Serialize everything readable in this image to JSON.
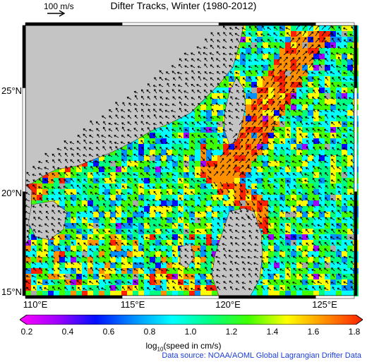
{
  "title": "Difter Tracks, Winter (1980-2012)",
  "scale_label": "100 m/s",
  "lat_ticks": [
    {
      "label": "25°N",
      "value": 25
    },
    {
      "label": "20°N",
      "value": 20
    },
    {
      "label": "15°N",
      "value": 15
    }
  ],
  "lon_ticks": [
    {
      "label": "110°E",
      "value": 110
    },
    {
      "label": "115°E",
      "value": 115
    },
    {
      "label": "120°E",
      "value": 120
    },
    {
      "label": "125°E",
      "value": 125
    }
  ],
  "lon_range": [
    110,
    127
  ],
  "lat_range": [
    15,
    28
  ],
  "colorbar": {
    "ticks": [
      "0.2",
      "0.4",
      "0.6",
      "0.8",
      "1.0",
      "1.2",
      "1.4",
      "1.6",
      "1.8"
    ],
    "range": [
      0.2,
      1.8
    ],
    "colors": [
      "#ff00ff",
      "#a000ff",
      "#0010ff",
      "#0090ff",
      "#00ffff",
      "#00ff80",
      "#40ff00",
      "#ffff00",
      "#ff9000",
      "#ff2000"
    ],
    "label_prefix": "log",
    "label_sub": "10",
    "label_suffix": "(speed in cm/s)"
  },
  "source": "Data source: NOAA/AOML Global Lagrangian Drifter Data",
  "colors": {
    "land": "#c4c4c4",
    "ocean_nodata": "#a8a8a8",
    "frame": "#000000"
  }
}
